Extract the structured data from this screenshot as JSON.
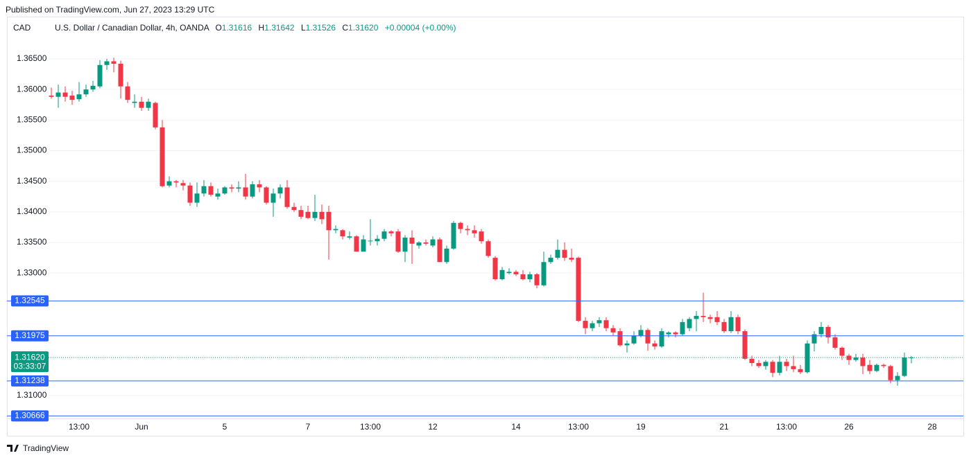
{
  "header": "Published on TradingView.com, Jun 27, 2023 13:29 UTC",
  "footer": "TradingView",
  "chart_data": {
    "type": "candlestick",
    "currency": "CAD",
    "title": "U.S. Dollar / Canadian Dollar, 4h, OANDA",
    "ohlc_legend": [
      {
        "key": "O",
        "text": "1.31616"
      },
      {
        "key": "H",
        "text": "1.31642"
      },
      {
        "key": "L",
        "text": "1.31526"
      },
      {
        "key": "C",
        "text": "1.31620"
      }
    ],
    "change": "+0.00004 (+0.00%)",
    "categories": [
      null,
      null,
      null,
      null,
      "13:00",
      null,
      null,
      null,
      null,
      null,
      null,
      null,
      null,
      "Jun",
      null,
      null,
      null,
      null,
      null,
      null,
      null,
      null,
      null,
      null,
      null,
      "5",
      null,
      null,
      null,
      null,
      null,
      null,
      null,
      null,
      null,
      null,
      null,
      "7",
      null,
      null,
      null,
      null,
      null,
      null,
      null,
      null,
      "13:00",
      null,
      null,
      null,
      null,
      null,
      null,
      null,
      null,
      "12",
      null,
      null,
      null,
      null,
      null,
      null,
      null,
      null,
      null,
      null,
      null,
      "14",
      null,
      null,
      null,
      null,
      null,
      null,
      null,
      null,
      "13:00",
      null,
      null,
      null,
      null,
      null,
      null,
      null,
      null,
      "19",
      null,
      null,
      null,
      null,
      null,
      null,
      null,
      null,
      null,
      null,
      null,
      "21",
      null,
      null,
      null,
      null,
      null,
      null,
      null,
      null,
      "13:00",
      null,
      null,
      null,
      null,
      null,
      null,
      null,
      null,
      "26",
      null,
      null,
      null,
      null,
      null,
      null,
      null,
      null,
      null,
      null,
      null,
      "28"
    ],
    "open": [
      1.359,
      1.3588,
      1.3595,
      1.359,
      1.3584,
      1.3592,
      1.36,
      1.3605,
      1.364,
      1.3646,
      1.3642,
      1.3605,
      1.3578,
      1.358,
      1.357,
      1.3578,
      1.3538,
      1.3443,
      1.345,
      1.3447,
      1.3443,
      1.3415,
      1.343,
      1.3442,
      1.3425,
      1.343,
      1.344,
      1.3438,
      1.344,
      1.3425,
      1.3445,
      1.344,
      1.3415,
      1.343,
      1.344,
      1.3408,
      1.3403,
      1.34,
      1.339,
      1.34,
      1.34,
      1.337,
      1.337,
      1.3358,
      1.336,
      1.3335,
      1.3352,
      1.3352,
      1.3356,
      1.3368,
      1.3368,
      1.3335,
      1.3358,
      1.3345,
      1.335,
      1.3345,
      1.3355,
      1.3318,
      1.334,
      1.3382,
      1.3372,
      1.337,
      1.3368,
      1.3352,
      1.3325,
      1.329,
      1.33,
      1.3302,
      1.3298,
      1.329,
      1.3298,
      1.328,
      1.3318,
      1.3325,
      1.3338,
      1.3325,
      1.3325,
      1.3222,
      1.321,
      1.3218,
      1.3223,
      1.321,
      1.3205,
      1.3182,
      1.3185,
      1.3198,
      1.3207,
      1.3185,
      1.318,
      1.32,
      1.3203,
      1.32,
      1.321,
      1.3225,
      1.323,
      1.3228,
      1.3228,
      1.322,
      1.3205,
      1.3228,
      1.3205,
      1.316,
      1.3153,
      1.3148,
      1.3155,
      1.3137,
      1.3155,
      1.3148,
      1.3143,
      1.3138,
      1.3185,
      1.32,
      1.3212,
      1.3195,
      1.3178,
      1.3165,
      1.3158,
      1.3162,
      1.315,
      1.314,
      1.315,
      1.3148,
      1.3125,
      1.3132,
      1.31616,
      null,
      null,
      null
    ],
    "high": [
      1.3603,
      1.3608,
      1.3605,
      1.3598,
      1.3612,
      1.3608,
      1.3614,
      1.3648,
      1.365,
      1.3652,
      1.3647,
      1.3612,
      1.3592,
      1.3588,
      1.3585,
      1.358,
      1.355,
      1.3458,
      1.3452,
      1.3452,
      1.3448,
      1.3448,
      1.3452,
      1.3448,
      1.3438,
      1.3442,
      1.3445,
      1.345,
      1.3462,
      1.345,
      1.3452,
      1.3442,
      1.3438,
      1.3445,
      1.3452,
      1.3415,
      1.341,
      1.341,
      1.3428,
      1.3412,
      1.341,
      1.3378,
      1.3372,
      1.3368,
      1.3362,
      1.3362,
      1.3388,
      1.3362,
      1.3372,
      1.337,
      1.3372,
      1.3362,
      1.337,
      1.3352,
      1.3355,
      1.336,
      1.3358,
      1.3345,
      1.3385,
      1.3384,
      1.3378,
      1.3378,
      1.3372,
      1.3355,
      1.3328,
      1.331,
      1.3308,
      1.3305,
      1.3305,
      1.3302,
      1.33,
      1.3335,
      1.333,
      1.3355,
      1.335,
      1.334,
      1.3327,
      1.3228,
      1.3222,
      1.3228,
      1.3228,
      1.3215,
      1.321,
      1.319,
      1.3205,
      1.3215,
      1.321,
      1.319,
      1.321,
      1.3205,
      1.3205,
      1.3225,
      1.3228,
      1.3238,
      1.3268,
      1.3232,
      1.3238,
      1.3225,
      1.3238,
      1.3232,
      1.3208,
      1.3165,
      1.3158,
      1.3158,
      1.3158,
      1.3165,
      1.316,
      1.3165,
      1.315,
      1.319,
      1.3205,
      1.322,
      1.3215,
      1.32,
      1.318,
      1.3168,
      1.3168,
      1.3168,
      1.3158,
      1.3152,
      1.3152,
      1.315,
      1.3138,
      1.317,
      1.31642,
      null,
      null,
      null
    ],
    "low": [
      1.3585,
      1.357,
      1.358,
      1.3575,
      1.358,
      1.3588,
      1.3596,
      1.3602,
      1.3632,
      1.3628,
      1.3585,
      1.3578,
      1.357,
      1.3565,
      1.3565,
      1.3535,
      1.344,
      1.344,
      1.344,
      1.3435,
      1.341,
      1.3408,
      1.3425,
      1.3425,
      1.342,
      1.3428,
      1.3432,
      1.3432,
      1.342,
      1.3422,
      1.3432,
      1.3412,
      1.3392,
      1.3422,
      1.3405,
      1.34,
      1.3388,
      1.3388,
      1.3385,
      1.338,
      1.3322,
      1.3365,
      1.3355,
      1.3355,
      1.3335,
      1.3335,
      1.3345,
      1.3345,
      1.3352,
      1.336,
      1.3333,
      1.3318,
      1.3315,
      1.334,
      1.3345,
      1.3342,
      1.3318,
      1.3315,
      1.3338,
      1.3365,
      1.3362,
      1.3358,
      1.3348,
      1.3325,
      1.3288,
      1.3288,
      1.3298,
      1.3295,
      1.3288,
      1.3285,
      1.3275,
      1.3278,
      1.3315,
      1.3322,
      1.332,
      1.3318,
      1.322,
      1.32,
      1.3205,
      1.3212,
      1.3205,
      1.3198,
      1.318,
      1.317,
      1.3183,
      1.3195,
      1.3173,
      1.3175,
      1.3178,
      1.3195,
      1.3195,
      1.3198,
      1.3205,
      1.3205,
      1.322,
      1.3218,
      1.3215,
      1.3202,
      1.3202,
      1.32,
      1.3158,
      1.3148,
      1.3145,
      1.3142,
      1.313,
      1.3133,
      1.314,
      1.3138,
      1.3135,
      1.3136,
      1.3172,
      1.3195,
      1.3185,
      1.3175,
      1.3158,
      1.315,
      1.3155,
      1.3135,
      1.3135,
      1.3138,
      1.3145,
      1.312,
      1.3116,
      1.313,
      1.31526,
      null,
      null,
      null
    ],
    "close": [
      1.3588,
      1.3595,
      1.3588,
      1.3583,
      1.3592,
      1.36,
      1.3606,
      1.364,
      1.3646,
      1.3642,
      1.3605,
      1.3583,
      1.358,
      1.357,
      1.358,
      1.3538,
      1.3442,
      1.345,
      1.3448,
      1.3443,
      1.3415,
      1.343,
      1.3442,
      1.3428,
      1.343,
      1.344,
      1.3438,
      1.344,
      1.3425,
      1.3445,
      1.344,
      1.3415,
      1.343,
      1.344,
      1.3408,
      1.3403,
      1.3392,
      1.339,
      1.34,
      1.3388,
      1.337,
      1.3372,
      1.336,
      1.336,
      1.3335,
      1.3355,
      1.3353,
      1.3356,
      1.3368,
      1.3365,
      1.3335,
      1.3358,
      1.3348,
      1.335,
      1.3348,
      1.3355,
      1.3318,
      1.334,
      1.3382,
      1.3372,
      1.337,
      1.3365,
      1.3352,
      1.3328,
      1.329,
      1.3305,
      1.3302,
      1.3298,
      1.329,
      1.3298,
      1.328,
      1.3318,
      1.3325,
      1.3338,
      1.3325,
      1.3322,
      1.3222,
      1.321,
      1.3218,
      1.3223,
      1.321,
      1.3203,
      1.3182,
      1.3185,
      1.3198,
      1.3207,
      1.3185,
      1.318,
      1.3205,
      1.3203,
      1.32,
      1.322,
      1.3225,
      1.323,
      1.3228,
      1.3225,
      1.322,
      1.3205,
      1.3228,
      1.3205,
      1.316,
      1.3153,
      1.3148,
      1.3155,
      1.3137,
      1.3155,
      1.3148,
      1.3143,
      1.3138,
      1.3185,
      1.32,
      1.3212,
      1.3195,
      1.3178,
      1.3165,
      1.3158,
      1.3162,
      1.3148,
      1.314,
      1.315,
      1.3148,
      1.3125,
      1.3132,
      1.3162,
      1.3162,
      null,
      null,
      null
    ],
    "up_color": "#089981",
    "down_color": "#f23645",
    "ylim": [
      1.30625,
      1.3719
    ],
    "yticks": [
      {
        "value": 1.365,
        "label": "1.36500"
      },
      {
        "value": 1.36,
        "label": "1.36000"
      },
      {
        "value": 1.355,
        "label": "1.35500"
      },
      {
        "value": 1.35,
        "label": "1.35000"
      },
      {
        "value": 1.345,
        "label": "1.34500"
      },
      {
        "value": 1.34,
        "label": "1.34000"
      },
      {
        "value": 1.335,
        "label": "1.33500"
      },
      {
        "value": 1.33,
        "label": "1.33000"
      },
      {
        "value": 1.31,
        "label": "1.31000"
      }
    ],
    "hlines": [
      1.32545,
      1.31975,
      1.31238,
      1.30666
    ],
    "hline_color": "#2962ff",
    "last_price": {
      "value": 1.3162,
      "label": "1.31620",
      "countdown": "03:33:07"
    },
    "grid": true
  }
}
